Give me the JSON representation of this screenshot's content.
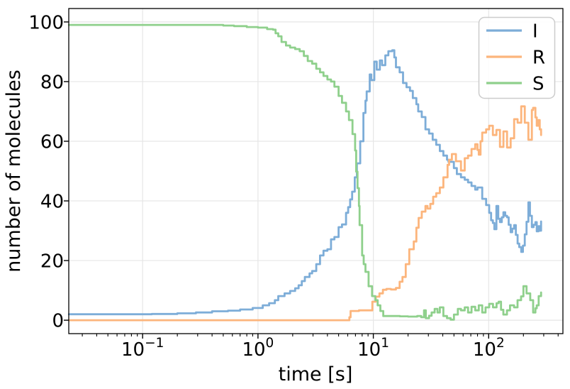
{
  "figure": {
    "title": "",
    "xlabel": "time [s]",
    "ylabel": "number of molecules",
    "legend": {
      "position": "upper right",
      "entries": [
        {
          "label": "I",
          "color": "#7dadd8"
        },
        {
          "label": "R",
          "color": "#fcb57c"
        },
        {
          "label": "S",
          "color": "#8fd08c"
        }
      ]
    },
    "colors": {
      "spine": "#000000",
      "grid": "#e6e6e6",
      "legend_border": "#cccccc",
      "background": "#ffffff"
    }
  },
  "chart_data": {
    "type": "line",
    "title": "",
    "xlabel": "time [s]",
    "ylabel": "number of molecules",
    "x_scale": "log",
    "y_scale": "linear",
    "xlim": [
      0.0229,
      440
    ],
    "ylim": [
      -4.5,
      104.5
    ],
    "grid": "major-both",
    "legend_position": "upper right",
    "x_major_ticks": [
      0.1,
      1,
      10,
      100
    ],
    "x_major_tick_labels": [
      {
        "base": "10",
        "exp": "−1"
      },
      {
        "base": "10",
        "exp": "0"
      },
      {
        "base": "10",
        "exp": "1"
      },
      {
        "base": "10",
        "exp": "2"
      }
    ],
    "x_minor_ticks": [
      0.03,
      0.04,
      0.05,
      0.06,
      0.07,
      0.08,
      0.09,
      0.2,
      0.3,
      0.4,
      0.5,
      0.6,
      0.7,
      0.8,
      0.9,
      2,
      3,
      4,
      5,
      6,
      7,
      8,
      9,
      20,
      30,
      40,
      50,
      60,
      70,
      80,
      90,
      200,
      300,
      400
    ],
    "y_ticks": [
      0,
      20,
      40,
      60,
      80,
      100
    ],
    "y_tick_labels": [
      "0",
      "20",
      "40",
      "60",
      "80",
      "100"
    ],
    "series": [
      {
        "name": "I",
        "color": "#7dadd8",
        "step": true,
        "points": [
          [
            0.023,
            2
          ],
          [
            0.06,
            2
          ],
          [
            0.12,
            2.1
          ],
          [
            0.2,
            2.3
          ],
          [
            0.29,
            2.6
          ],
          [
            0.4,
            3.0
          ],
          [
            0.55,
            3.2
          ],
          [
            0.7,
            3.6
          ],
          [
            0.9,
            4.1
          ],
          [
            1.1,
            5.0
          ],
          [
            1.25,
            5.7
          ],
          [
            1.4,
            6.7
          ],
          [
            1.5,
            8.1
          ],
          [
            1.7,
            9.0
          ],
          [
            1.9,
            9.8
          ],
          [
            2.1,
            10.7
          ],
          [
            2.25,
            11.7
          ],
          [
            2.4,
            13.1
          ],
          [
            2.55,
            14.5
          ],
          [
            2.8,
            15.7
          ],
          [
            2.95,
            16.5
          ],
          [
            3.2,
            18.8
          ],
          [
            3.45,
            21.7
          ],
          [
            3.7,
            23.3
          ],
          [
            4.0,
            23.8
          ],
          [
            4.3,
            27.1
          ],
          [
            4.6,
            27.9
          ],
          [
            5.0,
            31.2
          ],
          [
            5.35,
            32.1
          ],
          [
            5.8,
            36.0
          ],
          [
            6.05,
            37.9
          ],
          [
            6.3,
            40.5
          ],
          [
            6.55,
            43.1
          ],
          [
            6.9,
            47.9
          ],
          [
            7.2,
            52.6
          ],
          [
            7.7,
            60.0
          ],
          [
            8.2,
            69.5
          ],
          [
            8.55,
            73.6
          ],
          [
            8.75,
            76.7
          ],
          [
            9.3,
            82.4
          ],
          [
            9.6,
            80.5
          ],
          [
            10.2,
            86.7
          ],
          [
            10.7,
            84.0
          ],
          [
            11.4,
            87.1
          ],
          [
            11.9,
            85.5
          ],
          [
            12.7,
            88.8
          ],
          [
            13.5,
            90.2
          ],
          [
            14.6,
            90.5
          ],
          [
            15.2,
            88.1
          ],
          [
            15.7,
            84.8
          ],
          [
            16.9,
            83.1
          ],
          [
            18.1,
            79.5
          ],
          [
            19.4,
            78.1
          ],
          [
            20.8,
            76.9
          ],
          [
            22.0,
            74.5
          ],
          [
            23.6,
            72.4
          ],
          [
            24.5,
            70.0
          ],
          [
            26.3,
            68.1
          ],
          [
            28.3,
            64.0
          ],
          [
            30.4,
            62.6
          ],
          [
            32.7,
            60.5
          ],
          [
            35.1,
            58.8
          ],
          [
            37.7,
            56.7
          ],
          [
            40.5,
            55.2
          ],
          [
            43.5,
            53.8
          ],
          [
            44.8,
            53.1
          ],
          [
            49.9,
            51.0
          ],
          [
            53.0,
            49.0
          ],
          [
            57.5,
            47.9
          ],
          [
            62.0,
            47.1
          ],
          [
            66.2,
            46.2
          ],
          [
            71.0,
            45.0
          ],
          [
            76.4,
            43.8
          ],
          [
            80.0,
            44.5
          ],
          [
            87.9,
            40.7
          ],
          [
            95.0,
            38.6
          ],
          [
            101.0,
            36.0
          ],
          [
            105.0,
            33.5
          ],
          [
            108.7,
            32.6
          ],
          [
            112.0,
            30.5
          ],
          [
            116.7,
            38.3
          ],
          [
            121.0,
            34.0
          ],
          [
            125.3,
            32.9
          ],
          [
            130.0,
            34.5
          ],
          [
            134.3,
            36.2
          ],
          [
            139.0,
            35.0
          ],
          [
            144.2,
            34.5
          ],
          [
            149.0,
            32.0
          ],
          [
            155.0,
            29.5
          ],
          [
            160.0,
            30.7
          ],
          [
            166.3,
            31.9
          ],
          [
            172.0,
            28.6
          ],
          [
            178.2,
            25.7
          ],
          [
            184.0,
            24.5
          ],
          [
            191.4,
            22.9
          ],
          [
            198.0,
            25.0
          ],
          [
            205.6,
            28.8
          ],
          [
            213.0,
            33.0
          ],
          [
            220.8,
            39.5
          ],
          [
            228.0,
            35.0
          ],
          [
            236.6,
            31.2
          ],
          [
            245.0,
            32.0
          ],
          [
            254.2,
            32.9
          ],
          [
            261.2,
            29.8
          ],
          [
            270.0,
            31.5
          ],
          [
            277.0,
            30.0
          ],
          [
            284.4,
            33.1
          ]
        ]
      },
      {
        "name": "R",
        "color": "#fcb57c",
        "step": true,
        "points": [
          [
            0.023,
            0
          ],
          [
            1.0,
            0
          ],
          [
            3.0,
            0
          ],
          [
            5.0,
            0
          ],
          [
            6.0,
            0
          ],
          [
            6.2,
            1.0
          ],
          [
            6.35,
            3.1
          ],
          [
            7.5,
            3.3
          ],
          [
            9.1,
            3.3
          ],
          [
            9.8,
            6.2
          ],
          [
            10.5,
            7.9
          ],
          [
            11.3,
            9.0
          ],
          [
            12.1,
            10.2
          ],
          [
            13.0,
            10.5
          ],
          [
            14.2,
            10.3
          ],
          [
            15.7,
            10.8
          ],
          [
            16.9,
            12.9
          ],
          [
            17.9,
            14.5
          ],
          [
            19.1,
            18.8
          ],
          [
            20.5,
            23.8
          ],
          [
            22.4,
            26.4
          ],
          [
            23.6,
            31.0
          ],
          [
            24.7,
            34.3
          ],
          [
            26.3,
            36.4
          ],
          [
            28.3,
            38.3
          ],
          [
            29.5,
            37.4
          ],
          [
            31.2,
            39.0
          ],
          [
            33.0,
            41.4
          ],
          [
            35.1,
            42.6
          ],
          [
            37.7,
            44.5
          ],
          [
            40.5,
            47.9
          ],
          [
            44.0,
            52.1
          ],
          [
            45.4,
            53.8
          ],
          [
            48.0,
            55.7
          ],
          [
            52.0,
            53.3
          ],
          [
            57.5,
            50.2
          ],
          [
            62.0,
            54.3
          ],
          [
            66.2,
            55.2
          ],
          [
            71.0,
            57.4
          ],
          [
            76.4,
            59.0
          ],
          [
            80.0,
            57.1
          ],
          [
            82.0,
            55.5
          ],
          [
            85.0,
            60.0
          ],
          [
            87.9,
            62.9
          ],
          [
            95.0,
            64.0
          ],
          [
            101.0,
            65.2
          ],
          [
            108.7,
            62.1
          ],
          [
            116.7,
            63.8
          ],
          [
            125.3,
            58.1
          ],
          [
            134.3,
            63.3
          ],
          [
            144.2,
            57.9
          ],
          [
            155.0,
            61.0
          ],
          [
            166.3,
            67.4
          ],
          [
            178.2,
            66.2
          ],
          [
            191.4,
            71.7
          ],
          [
            205.6,
            66.2
          ],
          [
            220.8,
            60.5
          ],
          [
            236.6,
            70.5
          ],
          [
            243.0,
            71.2
          ],
          [
            254.2,
            68.0
          ],
          [
            261.2,
            65.2
          ],
          [
            270.0,
            67.1
          ],
          [
            277.0,
            64.0
          ],
          [
            284.4,
            62.1
          ]
        ]
      },
      {
        "name": "S",
        "color": "#8fd08c",
        "step": true,
        "points": [
          [
            0.023,
            99
          ],
          [
            0.1,
            99
          ],
          [
            0.2,
            99
          ],
          [
            0.3,
            99
          ],
          [
            0.39,
            99
          ],
          [
            0.5,
            98.8
          ],
          [
            0.62,
            98.6
          ],
          [
            0.8,
            98.3
          ],
          [
            1.0,
            98.1
          ],
          [
            1.2,
            97.6
          ],
          [
            1.35,
            97.4
          ],
          [
            1.42,
            96.2
          ],
          [
            1.5,
            95.2
          ],
          [
            1.6,
            93.3
          ],
          [
            1.75,
            92.1
          ],
          [
            1.9,
            91.4
          ],
          [
            2.1,
            90.9
          ],
          [
            2.3,
            90.2
          ],
          [
            2.5,
            88.6
          ],
          [
            2.7,
            86.9
          ],
          [
            2.95,
            86.0
          ],
          [
            3.2,
            84.3
          ],
          [
            3.45,
            83.1
          ],
          [
            3.7,
            81.9
          ],
          [
            4.0,
            80.7
          ],
          [
            4.3,
            80.0
          ],
          [
            4.6,
            78.3
          ],
          [
            5.0,
            75.2
          ],
          [
            5.35,
            72.9
          ],
          [
            5.8,
            70.0
          ],
          [
            6.15,
            67.1
          ],
          [
            6.6,
            62.4
          ],
          [
            6.95,
            56.9
          ],
          [
            7.1,
            49.8
          ],
          [
            7.3,
            44.3
          ],
          [
            7.5,
            38.3
          ],
          [
            7.6,
            31.9
          ],
          [
            8.0,
            21.7
          ],
          [
            8.25,
            18.8
          ],
          [
            8.55,
            16.2
          ],
          [
            9.1,
            11.4
          ],
          [
            9.75,
            8.1
          ],
          [
            10.4,
            6.7
          ],
          [
            10.9,
            5.0
          ],
          [
            11.5,
            3.1
          ],
          [
            12.2,
            1.4
          ],
          [
            14.0,
            1.4
          ],
          [
            17.0,
            1.3
          ],
          [
            20.0,
            1.2
          ],
          [
            24.0,
            1.4
          ],
          [
            26.0,
            1.0
          ],
          [
            27.5,
            3.3
          ],
          [
            28.5,
            0.7
          ],
          [
            30.4,
            1.5
          ],
          [
            32.0,
            2.6
          ],
          [
            34.0,
            3.8
          ],
          [
            36.0,
            2.6
          ],
          [
            37.7,
            4.3
          ],
          [
            40.5,
            1.4
          ],
          [
            43.5,
            0.7
          ],
          [
            46.8,
            0.2
          ],
          [
            50.0,
            1.9
          ],
          [
            54.0,
            3.8
          ],
          [
            57.5,
            3.3
          ],
          [
            62.0,
            4.3
          ],
          [
            66.2,
            2.6
          ],
          [
            71.0,
            4.5
          ],
          [
            76.4,
            3.3
          ],
          [
            82.0,
            5.0
          ],
          [
            87.9,
            2.6
          ],
          [
            94.0,
            4.3
          ],
          [
            101.0,
            5.5
          ],
          [
            109.0,
            4.3
          ],
          [
            117.0,
            5.7
          ],
          [
            122.0,
            6.2
          ],
          [
            128.0,
            3.5
          ],
          [
            134.0,
            1.9
          ],
          [
            144.0,
            3.3
          ],
          [
            153.0,
            5.0
          ],
          [
            166.0,
            4.3
          ],
          [
            178.0,
            6.7
          ],
          [
            191.0,
            8.0
          ],
          [
            200.0,
            11.4
          ],
          [
            213.0,
            9.0
          ],
          [
            229.0,
            6.7
          ],
          [
            243.0,
            2.6
          ],
          [
            254.0,
            4.0
          ],
          [
            261.0,
            5.0
          ],
          [
            271.0,
            8.1
          ],
          [
            284.4,
            9.3
          ]
        ]
      }
    ]
  }
}
